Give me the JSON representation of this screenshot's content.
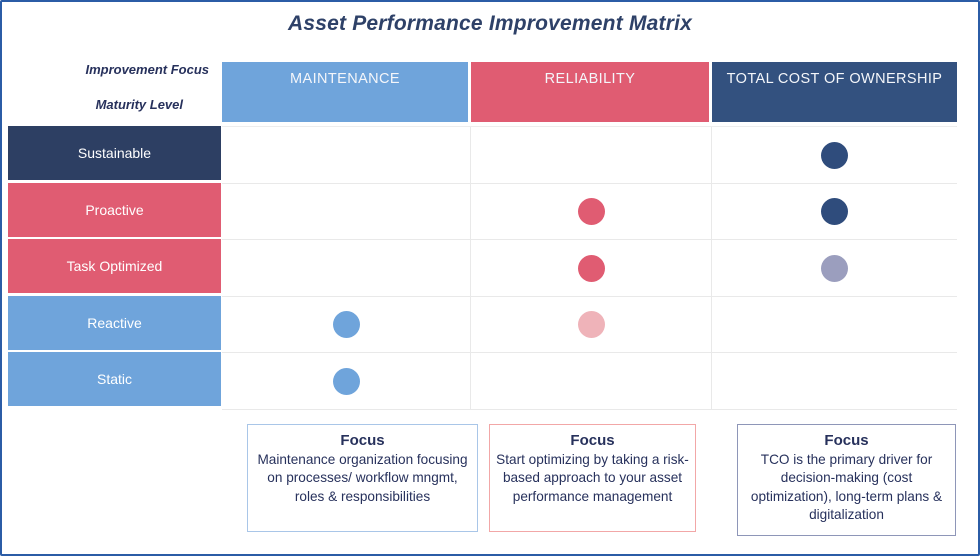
{
  "title": "Asset Performance Improvement Matrix",
  "corner": {
    "top_label": "Improvement Focus",
    "bottom_label": "Maturity Level"
  },
  "matrix": {
    "columns": [
      {
        "label": "MAINTENANCE",
        "color": "#6FA4DB"
      },
      {
        "label": "RELIABILITY",
        "color": "#E05C72"
      },
      {
        "label": "TOTAL COST OF OWNERSHIP",
        "color": "#33517F"
      }
    ],
    "rows": [
      {
        "label": "Sustainable",
        "color": "#2D3F63",
        "dots": [
          null,
          null,
          "navy"
        ]
      },
      {
        "label": "Proactive",
        "color": "#E05C72",
        "dots": [
          null,
          "red",
          "navy"
        ]
      },
      {
        "label": "Task Optimized",
        "color": "#E05C72",
        "dots": [
          null,
          "red",
          "lavender"
        ]
      },
      {
        "label": "Reactive",
        "color": "#6FA4DB",
        "dots": [
          "blue",
          "pink",
          null
        ]
      },
      {
        "label": "Static",
        "color": "#6FA4DB",
        "dots": [
          "blue",
          null,
          null
        ]
      }
    ],
    "dot_colors": {
      "navy": "#2F4C7C",
      "red": "#E05C72",
      "lavender": "#9B9EBE",
      "blue": "#6FA4DB",
      "pink": "#EFB3B9"
    }
  },
  "focus_boxes": [
    {
      "title": "Focus",
      "text": "Maintenance organization focusing on processes/ workflow mngmt, roles & responsibilities",
      "border_color": "#A9C6E8"
    },
    {
      "title": "Focus",
      "text": "Start optimizing by taking a risk-based approach to your asset performance management",
      "border_color": "#F2A7A7"
    },
    {
      "title": "Focus",
      "text": "TCO is the primary driver for decision-making (cost optimization), long-term plans & digitalization",
      "border_color": "#8E96B8"
    }
  ],
  "theme": {
    "frame_border": "#2B5CA6",
    "text_navy": "#27315C",
    "grid_line": "#E9E9E9"
  }
}
